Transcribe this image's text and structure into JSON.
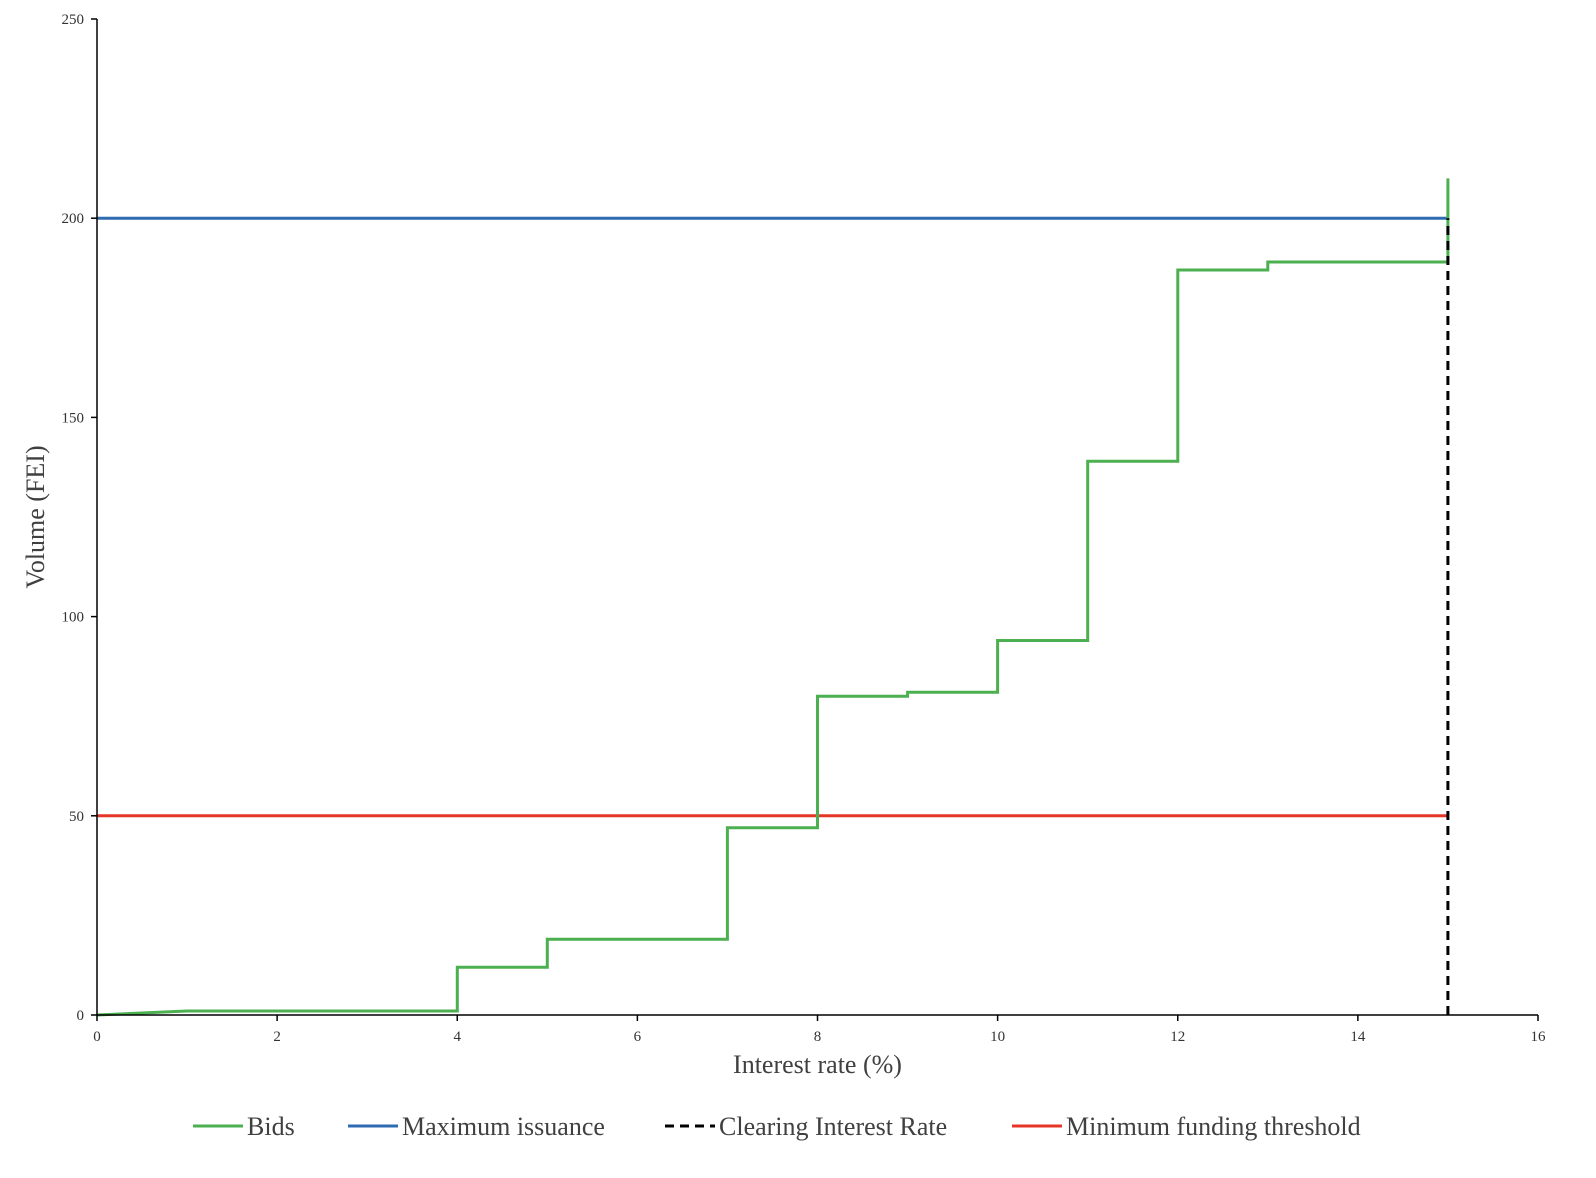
{
  "chart_data": {
    "type": "line",
    "title": "",
    "xlabel": "Interest rate (%)",
    "ylabel": "Volume (FEI)",
    "xlim": [
      0,
      16
    ],
    "ylim": [
      0,
      250
    ],
    "x_ticks": [
      0,
      2,
      4,
      6,
      8,
      10,
      12,
      14,
      16
    ],
    "y_ticks": [
      0,
      50,
      100,
      150,
      200,
      250
    ],
    "grid": false,
    "legend_position": "bottom",
    "series": [
      {
        "name": "Bids",
        "color": "#4caf50",
        "style": "solid",
        "points": [
          [
            0,
            0
          ],
          [
            1,
            1
          ],
          [
            4,
            1
          ],
          [
            4,
            12
          ],
          [
            5,
            12
          ],
          [
            5,
            19
          ],
          [
            7,
            19
          ],
          [
            7,
            47
          ],
          [
            8,
            47
          ],
          [
            8,
            80
          ],
          [
            9,
            80
          ],
          [
            9,
            81
          ],
          [
            10,
            81
          ],
          [
            10,
            94
          ],
          [
            11,
            94
          ],
          [
            11,
            139
          ],
          [
            12,
            139
          ],
          [
            12,
            187
          ],
          [
            13,
            187
          ],
          [
            13,
            189
          ],
          [
            15,
            189
          ],
          [
            15,
            210
          ]
        ]
      },
      {
        "name": "Maximum issuance",
        "color": "#2e6bb0",
        "style": "solid",
        "points": [
          [
            0,
            200
          ],
          [
            15,
            200
          ]
        ]
      },
      {
        "name": "Clearing Interest Rate",
        "color": "#000000",
        "style": "dashed",
        "points": [
          [
            15,
            0
          ],
          [
            15,
            200
          ]
        ]
      },
      {
        "name": "Minimum funding threshold",
        "color": "#e53527",
        "style": "solid",
        "points": [
          [
            0,
            50
          ],
          [
            15,
            50
          ]
        ]
      }
    ]
  }
}
